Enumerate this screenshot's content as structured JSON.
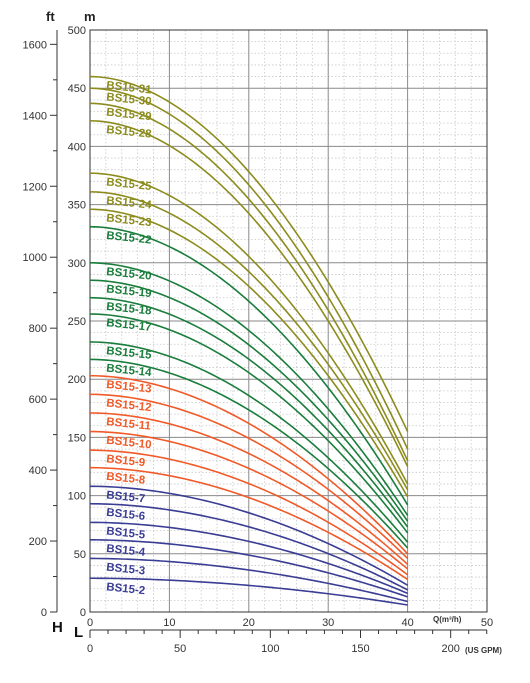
{
  "chart_data": {
    "type": "line",
    "title": "",
    "axes": {
      "head_left_unit": "ft",
      "head_left_letter": "H",
      "head_right_unit": "m",
      "flow_letter": "L",
      "flow_m3h_label": "Q(m³/h)",
      "flow_usgpm_label": "(US GPM)",
      "ft_ticks": [
        "0",
        "200",
        "400",
        "600",
        "800",
        "1000",
        "1200",
        "1400",
        "1600"
      ],
      "m_ticks": [
        "0",
        "50",
        "100",
        "150",
        "200",
        "250",
        "300",
        "350",
        "400",
        "450",
        "500"
      ],
      "q_ticks": [
        "0",
        "10",
        "20",
        "30",
        "40",
        "50"
      ],
      "gpm_ticks": [
        "0",
        "50",
        "100",
        "150",
        "200"
      ],
      "ylim_m": [
        0,
        500
      ],
      "ylim_ft": [
        0,
        1640
      ],
      "xlim_m3h": [
        0,
        50
      ],
      "xlim_usgpm": [
        0,
        220
      ]
    },
    "grid": true,
    "curve_flow_range_m3h": [
      0,
      40
    ],
    "series": [
      {
        "name": "BS15-2",
        "shutoff_head_m": 29,
        "head_at_40_m3h": 6,
        "color": "#3a3d94"
      },
      {
        "name": "BS15-3",
        "shutoff_head_m": 46,
        "head_at_40_m3h": 9,
        "color": "#3a3d94"
      },
      {
        "name": "BS15-4",
        "shutoff_head_m": 62,
        "head_at_40_m3h": 13,
        "color": "#3a3d94"
      },
      {
        "name": "BS15-5",
        "shutoff_head_m": 77,
        "head_at_40_m3h": 16,
        "color": "#3a3d94"
      },
      {
        "name": "BS15-6",
        "shutoff_head_m": 93,
        "head_at_40_m3h": 19,
        "color": "#3a3d94"
      },
      {
        "name": "BS15-7",
        "shutoff_head_m": 108,
        "head_at_40_m3h": 23,
        "color": "#3a3d94"
      },
      {
        "name": "BS15-8",
        "shutoff_head_m": 124,
        "head_at_40_m3h": 28,
        "color": "#f05a28"
      },
      {
        "name": "BS15-9",
        "shutoff_head_m": 139,
        "head_at_40_m3h": 32,
        "color": "#f05a28"
      },
      {
        "name": "BS15-10",
        "shutoff_head_m": 155,
        "head_at_40_m3h": 37,
        "color": "#f05a28"
      },
      {
        "name": "BS15-11",
        "shutoff_head_m": 171,
        "head_at_40_m3h": 41,
        "color": "#f05a28"
      },
      {
        "name": "BS15-12",
        "shutoff_head_m": 187,
        "head_at_40_m3h": 46,
        "color": "#f05a28"
      },
      {
        "name": "BS15-13",
        "shutoff_head_m": 203,
        "head_at_40_m3h": 50,
        "color": "#f05a28"
      },
      {
        "name": "BS15-14",
        "shutoff_head_m": 217,
        "head_at_40_m3h": 55,
        "color": "#1a7d3c"
      },
      {
        "name": "BS15-15",
        "shutoff_head_m": 232,
        "head_at_40_m3h": 60,
        "color": "#1a7d3c"
      },
      {
        "name": "BS15-17",
        "shutoff_head_m": 256,
        "head_at_40_m3h": 68,
        "color": "#1a7d3c"
      },
      {
        "name": "BS15-18",
        "shutoff_head_m": 270,
        "head_at_40_m3h": 73,
        "color": "#1a7d3c"
      },
      {
        "name": "BS15-19",
        "shutoff_head_m": 285,
        "head_at_40_m3h": 78,
        "color": "#1a7d3c"
      },
      {
        "name": "BS15-20",
        "shutoff_head_m": 300,
        "head_at_40_m3h": 83,
        "color": "#1a7d3c"
      },
      {
        "name": "BS15-22",
        "shutoff_head_m": 331,
        "head_at_40_m3h": 92,
        "color": "#1a7d3c"
      },
      {
        "name": "BS15-23",
        "shutoff_head_m": 346,
        "head_at_40_m3h": 99,
        "color": "#8c8c1e"
      },
      {
        "name": "BS15-24",
        "shutoff_head_m": 361,
        "head_at_40_m3h": 105,
        "color": "#8c8c1e"
      },
      {
        "name": "BS15-25",
        "shutoff_head_m": 377,
        "head_at_40_m3h": 110,
        "color": "#8c8c1e"
      },
      {
        "name": "BS15-28",
        "shutoff_head_m": 422,
        "head_at_40_m3h": 125,
        "color": "#8c8c1e"
      },
      {
        "name": "BS15-29",
        "shutoff_head_m": 437,
        "head_at_40_m3h": 130,
        "color": "#8c8c1e"
      },
      {
        "name": "BS15-30",
        "shutoff_head_m": 450,
        "head_at_40_m3h": 140,
        "color": "#8c8c1e"
      },
      {
        "name": "BS15-31",
        "shutoff_head_m": 460,
        "head_at_40_m3h": 155,
        "color": "#8c8c1e"
      }
    ],
    "colors": {
      "grid_major": "#8a8a8a",
      "grid_minor": "#c8c8c8",
      "axis": "#333333",
      "plot_background": "#ffffff"
    }
  }
}
